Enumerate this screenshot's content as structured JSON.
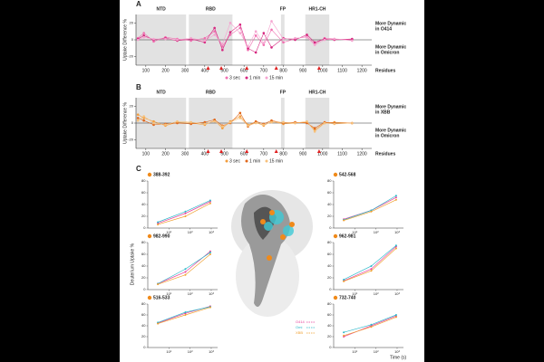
{
  "panels": [
    "A",
    "B",
    "C"
  ],
  "panel_c": {
    "ylabel": "Deuterium Uptake %",
    "xlabel": "Time (s)",
    "legend": [
      {
        "name": "O414",
        "color": "#e8409a"
      },
      {
        "name": "Omi",
        "color": "#2bb7c9"
      },
      {
        "name": "XBB",
        "color": "#f0a030"
      }
    ]
  },
  "chart_data": [
    {
      "type": "line",
      "ylabel": "Uptake Difference %",
      "xlabel": "Residues",
      "xlim": [
        50,
        1250
      ],
      "xticks": [
        100,
        200,
        300,
        400,
        500,
        600,
        700,
        800,
        900,
        1000,
        1100,
        1200
      ],
      "ylim": [
        -30,
        30
      ],
      "yticks": [
        -20,
        0,
        20
      ],
      "regions": [
        {
          "label": "NTD",
          "range": [
            14,
            305
          ]
        },
        {
          "label": "RBD",
          "range": [
            319,
            541
          ]
        },
        {
          "label": "FP",
          "range": [
            788,
            806
          ]
        },
        {
          "label": "HR1-CH",
          "range": [
            912,
            1034
          ]
        }
      ],
      "right_labels": {
        "top": [
          "More Dynamic",
          "in O414"
        ],
        "bottom": [
          "More Dynamic",
          "in Omicron"
        ]
      },
      "markers": [
        417,
        484,
        614,
        764,
        982
      ],
      "series": [
        {
          "name": "3 sec",
          "color": "#f06fb0",
          "x": [
            60,
            90,
            140,
            200,
            260,
            330,
            400,
            450,
            490,
            530,
            580,
            620,
            660,
            700,
            740,
            800,
            860,
            920,
            960,
            1010,
            1060,
            1150
          ],
          "values": [
            2,
            8,
            -2,
            3,
            1,
            -1,
            2,
            10,
            -8,
            6,
            14,
            -12,
            5,
            -6,
            12,
            -3,
            1,
            4,
            -5,
            2,
            1,
            0
          ]
        },
        {
          "name": "1 min",
          "color": "#d6267f",
          "x": [
            60,
            90,
            140,
            200,
            260,
            330,
            400,
            450,
            490,
            530,
            580,
            620,
            660,
            700,
            740,
            800,
            860,
            920,
            960,
            1010,
            1060,
            1150
          ],
          "values": [
            1,
            5,
            0,
            2,
            -1,
            1,
            -3,
            14,
            -12,
            9,
            18,
            -10,
            -15,
            8,
            -9,
            2,
            0,
            6,
            -3,
            1,
            0,
            1
          ]
        },
        {
          "name": "15 min",
          "color": "#f5a3cf",
          "x": [
            60,
            90,
            140,
            200,
            260,
            330,
            400,
            450,
            490,
            530,
            580,
            620,
            660,
            700,
            740,
            800,
            860,
            920,
            960,
            1010,
            1060,
            1150
          ],
          "values": [
            0,
            3,
            1,
            1,
            0,
            2,
            -1,
            6,
            -5,
            20,
            8,
            -8,
            10,
            -4,
            22,
            1,
            2,
            3,
            -6,
            0,
            1,
            -1
          ]
        }
      ]
    },
    {
      "type": "line",
      "ylabel": "Uptake Difference %",
      "xlabel": "Residues",
      "xlim": [
        50,
        1250
      ],
      "xticks": [
        100,
        200,
        300,
        400,
        500,
        600,
        700,
        800,
        900,
        1000,
        1100,
        1200
      ],
      "ylim": [
        -30,
        30
      ],
      "yticks": [
        -20,
        0,
        20
      ],
      "regions": [
        {
          "label": "NTD",
          "range": [
            14,
            305
          ]
        },
        {
          "label": "RBD",
          "range": [
            319,
            541
          ]
        },
        {
          "label": "FP",
          "range": [
            788,
            806
          ]
        },
        {
          "label": "HR1-CH",
          "range": [
            912,
            1034
          ]
        }
      ],
      "right_labels": {
        "top": [
          "More Dynamic",
          "in XBB"
        ],
        "bottom": [
          "More Dynamic",
          "in Omicron"
        ]
      },
      "markers": [
        417,
        484,
        614,
        764,
        982
      ],
      "series": [
        {
          "name": "3 sec",
          "color": "#f39c3a",
          "x": [
            60,
            90,
            140,
            200,
            260,
            330,
            400,
            450,
            490,
            530,
            580,
            620,
            660,
            700,
            740,
            800,
            860,
            920,
            960,
            1010,
            1060,
            1150
          ],
          "values": [
            10,
            6,
            2,
            -3,
            1,
            0,
            -2,
            3,
            -6,
            2,
            8,
            -2,
            1,
            -3,
            2,
            -1,
            0,
            1,
            -8,
            0,
            1,
            0
          ]
        },
        {
          "name": "1 min",
          "color": "#e0671a",
          "x": [
            60,
            90,
            140,
            200,
            260,
            330,
            400,
            450,
            490,
            530,
            580,
            620,
            660,
            700,
            740,
            800,
            860,
            920,
            960,
            1010,
            1060,
            1150
          ],
          "values": [
            6,
            3,
            -2,
            -1,
            0,
            -1,
            1,
            4,
            -3,
            0,
            12,
            -4,
            2,
            -1,
            3,
            0,
            1,
            0,
            -6,
            1,
            0,
            0
          ]
        },
        {
          "name": "15 min",
          "color": "#f7c07a",
          "x": [
            60,
            90,
            140,
            200,
            260,
            330,
            400,
            450,
            490,
            530,
            580,
            620,
            660,
            700,
            740,
            800,
            860,
            920,
            960,
            1010,
            1060,
            1150
          ],
          "values": [
            3,
            8,
            0,
            -2,
            2,
            1,
            -1,
            2,
            -4,
            1,
            6,
            -3,
            0,
            -2,
            1,
            1,
            0,
            2,
            -10,
            0,
            -1,
            0
          ]
        }
      ]
    },
    {
      "type": "small",
      "title": "388-392",
      "x": [
        3,
        60,
        900
      ],
      "xlim": [
        1,
        2000
      ],
      "log_x": true,
      "xticks": [
        {
          "value": 10,
          "label": "10¹"
        },
        {
          "value": 100,
          "label": "10²"
        },
        {
          "value": 1000,
          "label": "10³"
        }
      ],
      "ylim": [
        0,
        80
      ],
      "yticks": [
        0,
        20,
        40,
        60,
        80
      ],
      "series": [
        {
          "color": "#e8409a",
          "values": [
            8,
            25,
            45
          ]
        },
        {
          "color": "#2bb7c9",
          "values": [
            10,
            28,
            47
          ]
        },
        {
          "color": "#f0a030",
          "values": [
            6,
            20,
            42
          ]
        }
      ]
    },
    {
      "type": "small",
      "title": "982-990",
      "x": [
        3,
        60,
        900
      ],
      "xlim": [
        1,
        2000
      ],
      "log_x": true,
      "xticks": [
        {
          "value": 10,
          "label": "10¹"
        },
        {
          "value": 100,
          "label": "10²"
        },
        {
          "value": 1000,
          "label": "10³"
        }
      ],
      "ylim": [
        0,
        80
      ],
      "yticks": [
        0,
        20,
        40,
        60,
        80
      ],
      "series": [
        {
          "color": "#e8409a",
          "values": [
            10,
            30,
            65
          ]
        },
        {
          "color": "#2bb7c9",
          "values": [
            10,
            35,
            63
          ]
        },
        {
          "color": "#f0a030",
          "values": [
            9,
            25,
            60
          ]
        }
      ]
    },
    {
      "type": "small",
      "title": "516-533",
      "x": [
        3,
        60,
        900
      ],
      "xlim": [
        1,
        2000
      ],
      "log_x": true,
      "xticks": [
        {
          "value": 10,
          "label": "10¹"
        },
        {
          "value": 100,
          "label": "10²"
        },
        {
          "value": 1000,
          "label": "10³"
        }
      ],
      "ylim": [
        0,
        80
      ],
      "yticks": [
        0,
        20,
        40,
        60,
        80
      ],
      "series": [
        {
          "color": "#e8409a",
          "values": [
            45,
            63,
            76
          ]
        },
        {
          "color": "#2bb7c9",
          "values": [
            46,
            65,
            75
          ]
        },
        {
          "color": "#f0a030",
          "values": [
            44,
            60,
            74
          ]
        }
      ]
    },
    {
      "type": "small",
      "title": "542-568",
      "x": [
        3,
        60,
        900
      ],
      "xlim": [
        1,
        2000
      ],
      "log_x": true,
      "xticks": [
        {
          "value": 10,
          "label": "10¹"
        },
        {
          "value": 100,
          "label": "10²"
        },
        {
          "value": 1000,
          "label": "10³"
        }
      ],
      "ylim": [
        0,
        80
      ],
      "yticks": [
        0,
        20,
        40,
        60,
        80
      ],
      "series": [
        {
          "color": "#e8409a",
          "values": [
            15,
            30,
            52
          ]
        },
        {
          "color": "#2bb7c9",
          "values": [
            14,
            30,
            55
          ]
        },
        {
          "color": "#f0a030",
          "values": [
            13,
            28,
            48
          ]
        }
      ]
    },
    {
      "type": "small",
      "title": "962-981",
      "x": [
        3,
        60,
        900
      ],
      "xlim": [
        1,
        2000
      ],
      "log_x": true,
      "xticks": [
        {
          "value": 10,
          "label": "10¹"
        },
        {
          "value": 100,
          "label": "10²"
        },
        {
          "value": 1000,
          "label": "10³"
        }
      ],
      "ylim": [
        0,
        80
      ],
      "yticks": [
        0,
        20,
        40,
        60,
        80
      ],
      "series": [
        {
          "color": "#e8409a",
          "values": [
            15,
            35,
            73
          ]
        },
        {
          "color": "#2bb7c9",
          "values": [
            17,
            40,
            75
          ]
        },
        {
          "color": "#f0a030",
          "values": [
            14,
            32,
            70
          ]
        }
      ]
    },
    {
      "type": "small",
      "title": "732-740",
      "x": [
        3,
        60,
        900
      ],
      "xlim": [
        1,
        2000
      ],
      "log_x": true,
      "xticks": [
        {
          "value": 10,
          "label": "10¹"
        },
        {
          "value": 100,
          "label": "10²"
        },
        {
          "value": 1000,
          "label": "10³"
        }
      ],
      "ylim": [
        0,
        80
      ],
      "yticks": [
        0,
        20,
        40,
        60,
        80
      ],
      "series": [
        {
          "color": "#e8409a",
          "values": [
            20,
            40,
            58
          ]
        },
        {
          "color": "#2bb7c9",
          "values": [
            28,
            42,
            60
          ]
        },
        {
          "color": "#f0a030",
          "values": [
            22,
            38,
            56
          ]
        }
      ]
    }
  ]
}
